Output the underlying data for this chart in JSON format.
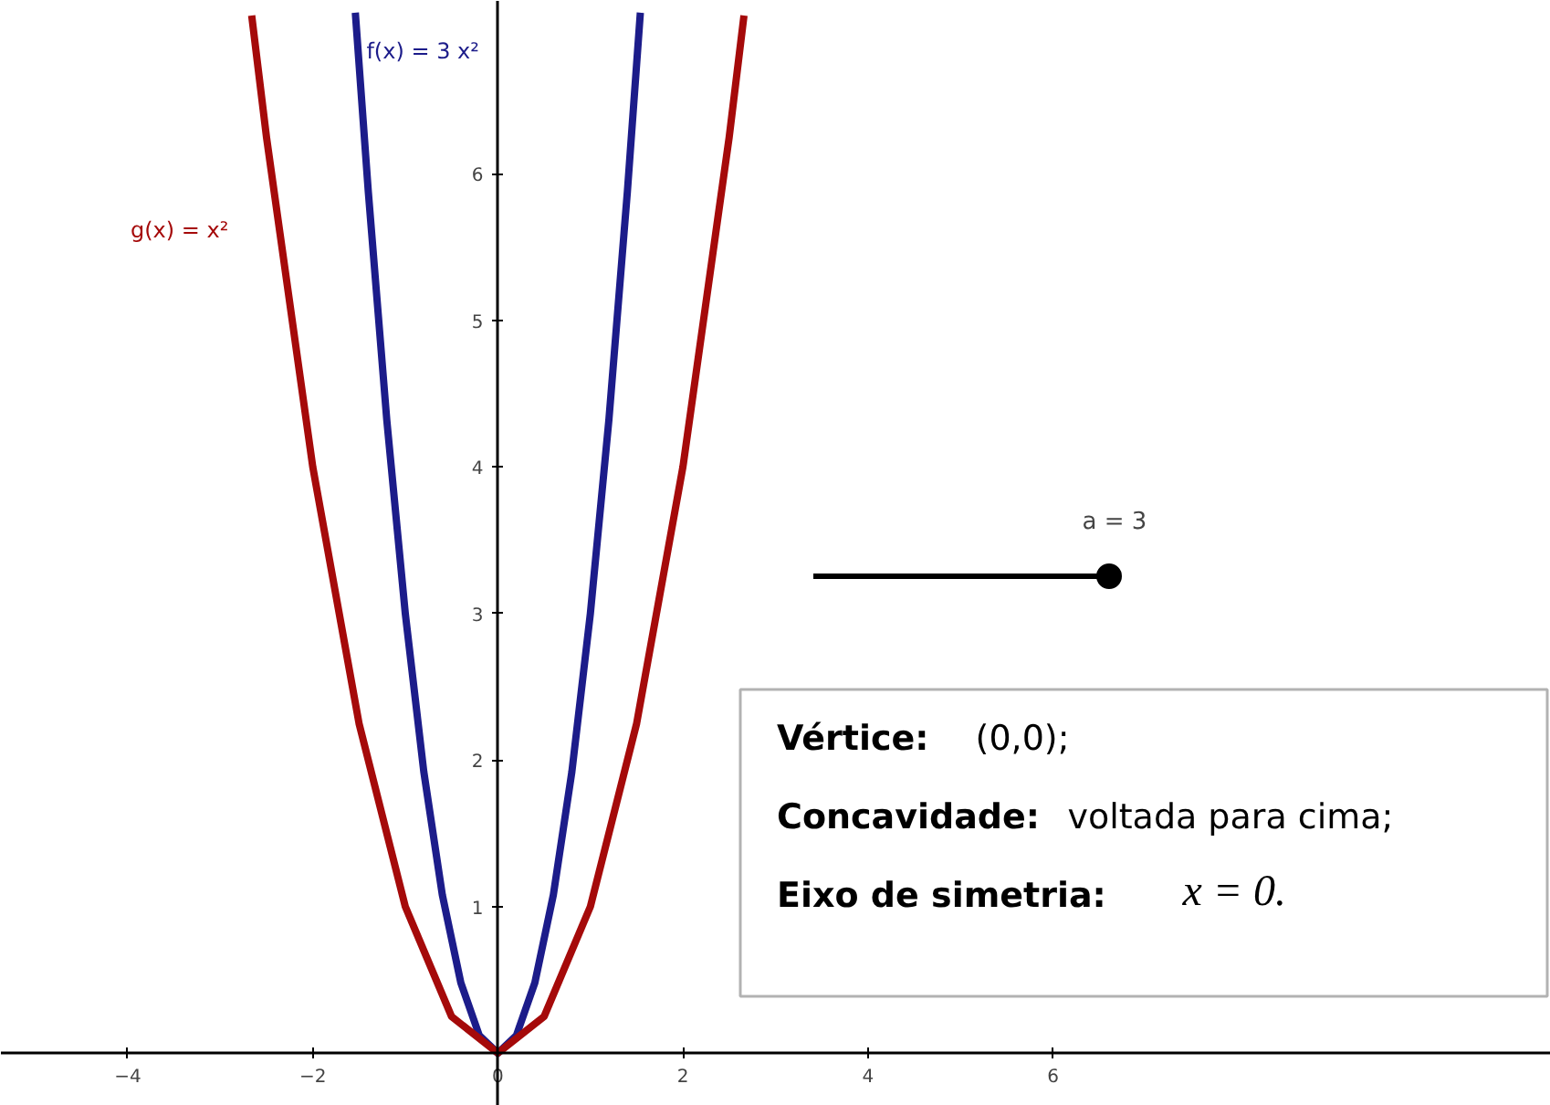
{
  "chart_data": {
    "type": "line",
    "xlim": [
      -5.37,
      11.38
    ],
    "ylim": [
      -0.36,
      7.18
    ],
    "xticks": [
      -4,
      -2,
      {
        "value": 0,
        "label": "0"
      },
      2,
      4,
      6
    ],
    "yticks": [
      1,
      2,
      3,
      4,
      5,
      6
    ],
    "grid": false,
    "marker": "none",
    "line_style": "solid",
    "series": [
      {
        "name": "f(x) = 3 x²",
        "color": "#1c1c8a",
        "x": [
          -1.54,
          -1.4,
          -1.2,
          -1,
          -0.8,
          -0.6,
          -0.4,
          -0.2,
          0,
          0.2,
          0.4,
          0.6,
          0.8,
          1,
          1.2,
          1.4,
          1.54
        ],
        "values": [
          7.1,
          5.88,
          4.32,
          3,
          1.92,
          1.08,
          0.48,
          0.12,
          0,
          0.12,
          0.48,
          1.08,
          1.92,
          3,
          4.32,
          5.88,
          7.1
        ]
      },
      {
        "name": "g(x) = x²",
        "color": "#a50a0a",
        "x": [
          -2.66,
          -2.5,
          -2,
          -1.5,
          -1,
          -0.5,
          0,
          0.5,
          1,
          1.5,
          2,
          2.5,
          2.66
        ],
        "values": [
          7.08,
          6.25,
          4,
          2.25,
          1,
          0.25,
          0,
          0.25,
          1,
          2.25,
          4,
          6.25,
          7.08
        ]
      }
    ],
    "annotations": [
      "a = 3",
      "Vértice: (0,0);",
      "Concavidade: voltada para cima;",
      "Eixo de simetria: x = 0."
    ]
  }
}
